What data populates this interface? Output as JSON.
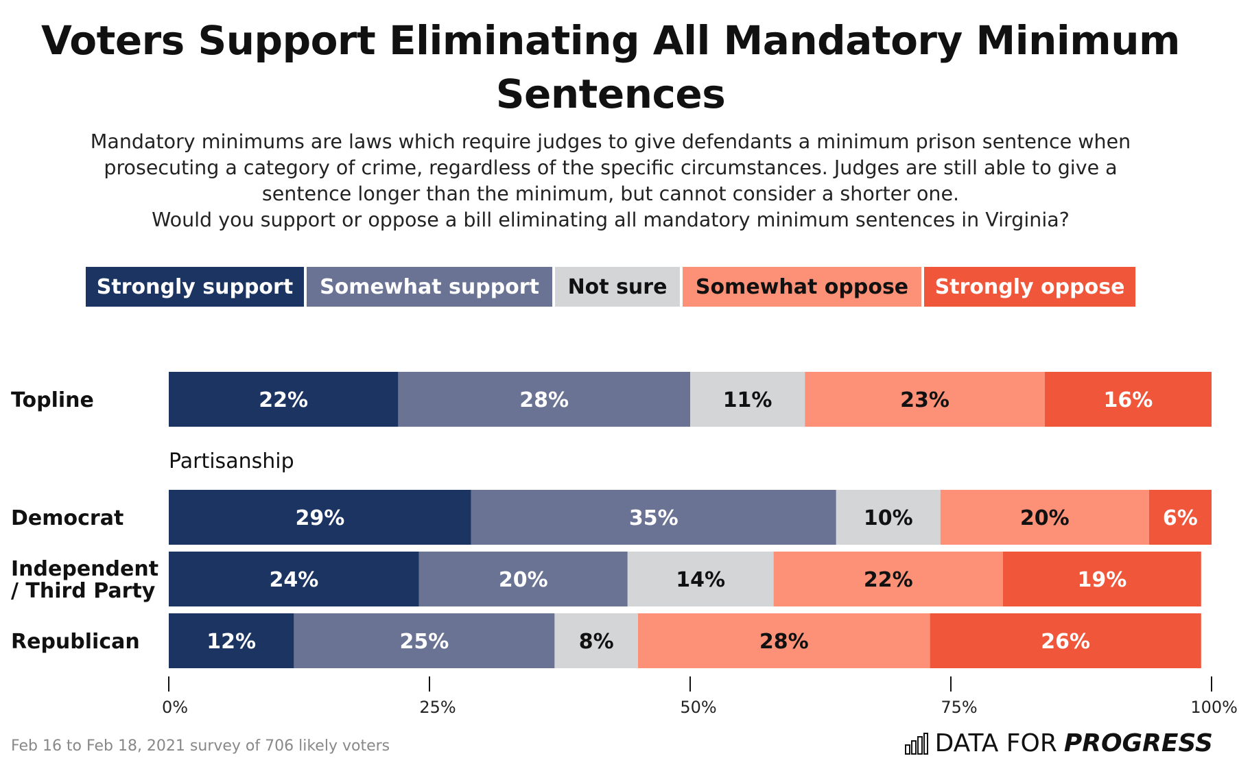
{
  "title_lines": [
    "Voters Support Eliminating All Mandatory Minimum",
    "Sentences"
  ],
  "subtitle_lines": [
    "Mandatory minimums are laws which require judges to give defendants a minimum prison sentence when",
    "prosecuting a category of crime, regardless of the specific circumstances. Judges are still able to give a",
    "sentence longer than the minimum, but cannot consider a shorter one.",
    "Would you support or oppose a bill eliminating all mandatory minimum sentences in Virginia?"
  ],
  "footnote": "Feb 16 to Feb 18, 2021 survey of 706 likely voters",
  "brand": {
    "prefix": "DATA FOR",
    "strong": "PROGRESS",
    "icon": "bar-chart-logo-icon"
  },
  "chart_data": {
    "type": "bar",
    "orientation": "horizontal-stacked-100",
    "legend_position": "top",
    "series": [
      {
        "name": "Strongly support",
        "color": "#1c3461",
        "text_color": "#ffffff"
      },
      {
        "name": "Somewhat support",
        "color": "#6a7394",
        "text_color": "#ffffff"
      },
      {
        "name": "Not sure",
        "color": "#d4d5d7",
        "text_color": "#111111"
      },
      {
        "name": "Somewhat oppose",
        "color": "#fc9177",
        "text_color": "#111111"
      },
      {
        "name": "Strongly oppose",
        "color": "#f0563a",
        "text_color": "#ffffff"
      }
    ],
    "groups": [
      {
        "label": "",
        "rows": [
          {
            "label": [
              "Topline"
            ],
            "values": [
              22,
              28,
              11,
              23,
              16
            ]
          }
        ]
      },
      {
        "label": "Partisanship",
        "rows": [
          {
            "label": [
              "Democrat"
            ],
            "values": [
              29,
              35,
              10,
              20,
              6
            ]
          },
          {
            "label": [
              "Independent",
              "/ Third Party"
            ],
            "values": [
              24,
              20,
              14,
              22,
              19
            ]
          },
          {
            "label": [
              "Republican"
            ],
            "values": [
              12,
              25,
              8,
              28,
              26
            ]
          }
        ]
      }
    ],
    "x_ticks": [
      "0%",
      "25%",
      "50%",
      "75%",
      "100%"
    ],
    "xlim": [
      0,
      100
    ],
    "grid": false
  }
}
